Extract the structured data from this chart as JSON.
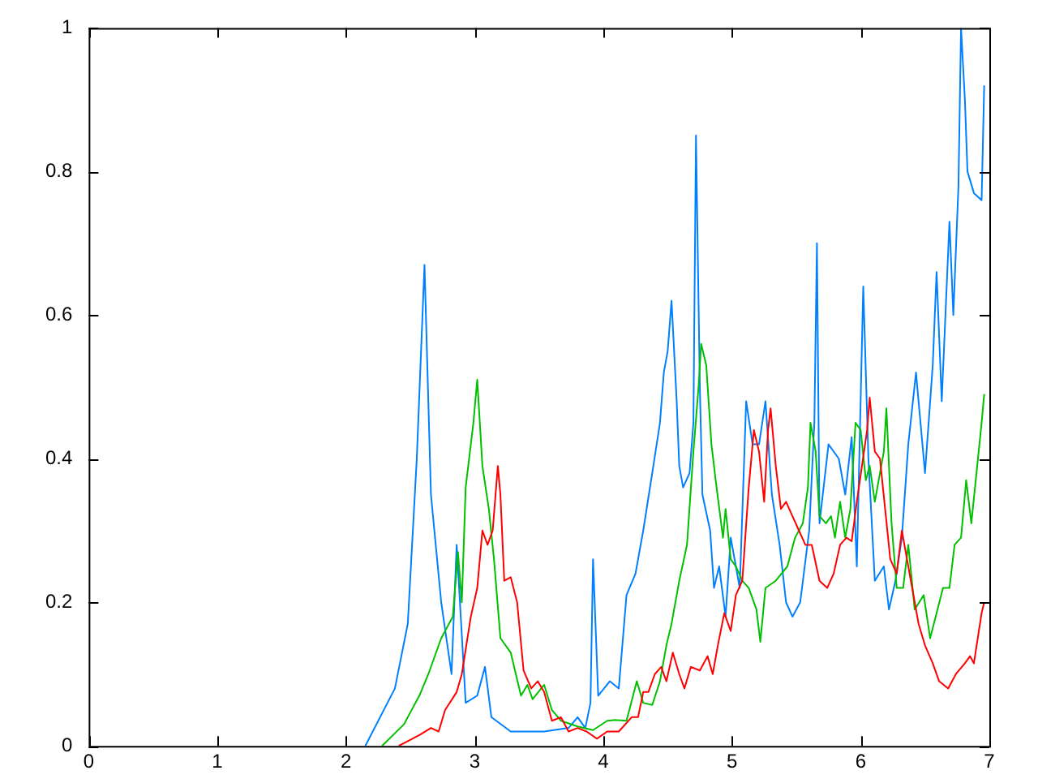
{
  "chart_data": {
    "type": "line",
    "xlim": [
      0,
      7
    ],
    "xticks": [
      0,
      1,
      2,
      3,
      4,
      5,
      6,
      7
    ],
    "ylim": [
      0,
      1
    ],
    "yticks": [
      0,
      0.2,
      0.4,
      0.6,
      0.8,
      1
    ],
    "grid": false,
    "legend": false,
    "marker": "none",
    "line_style": "solid",
    "series": [
      {
        "color": "#ff0000",
        "x": [
          2.41,
          2.57,
          2.66,
          2.72,
          2.77,
          2.86,
          2.9,
          2.97,
          3.02,
          3.06,
          3.1,
          3.14,
          3.18,
          3.2,
          3.23,
          3.28,
          3.33,
          3.38,
          3.44,
          3.49,
          3.54,
          3.6,
          3.67,
          3.73,
          3.8,
          3.87,
          3.95,
          4.03,
          4.12,
          4.22,
          4.27,
          4.31,
          4.35,
          4.4,
          4.45,
          4.49,
          4.54,
          4.59,
          4.63,
          4.68,
          4.75,
          4.81,
          4.85,
          4.89,
          4.94,
          4.99,
          5.03,
          5.08,
          5.13,
          5.17,
          5.21,
          5.25,
          5.28,
          5.3,
          5.34,
          5.38,
          5.42,
          5.47,
          5.52,
          5.57,
          5.62,
          5.68,
          5.74,
          5.79,
          5.84,
          5.89,
          5.93,
          5.97,
          6.01,
          6.05,
          6.07,
          6.11,
          6.15,
          6.19,
          6.23,
          6.28,
          6.32,
          6.36,
          6.4,
          6.45,
          6.5,
          6.56,
          6.61,
          6.68,
          6.74,
          6.81,
          6.85,
          6.88,
          6.94,
          6.96
        ],
        "values": [
          0,
          0.015,
          0.025,
          0.02,
          0.05,
          0.075,
          0.1,
          0.18,
          0.22,
          0.3,
          0.28,
          0.3,
          0.39,
          0.35,
          0.23,
          0.235,
          0.2,
          0.105,
          0.08,
          0.09,
          0.075,
          0.035,
          0.04,
          0.02,
          0.025,
          0.02,
          0.01,
          0.02,
          0.02,
          0.04,
          0.04,
          0.075,
          0.075,
          0.1,
          0.11,
          0.09,
          0.13,
          0.1,
          0.08,
          0.11,
          0.105,
          0.125,
          0.1,
          0.14,
          0.185,
          0.16,
          0.21,
          0.23,
          0.36,
          0.44,
          0.41,
          0.34,
          0.44,
          0.47,
          0.39,
          0.33,
          0.34,
          0.32,
          0.3,
          0.28,
          0.28,
          0.23,
          0.22,
          0.24,
          0.28,
          0.29,
          0.285,
          0.34,
          0.39,
          0.44,
          0.485,
          0.41,
          0.4,
          0.33,
          0.26,
          0.24,
          0.3,
          0.26,
          0.22,
          0.17,
          0.14,
          0.115,
          0.09,
          0.08,
          0.1,
          0.115,
          0.125,
          0.115,
          0.185,
          0.2
        ]
      },
      {
        "color": "#00c000",
        "x": [
          2.28,
          2.45,
          2.57,
          2.64,
          2.74,
          2.83,
          2.87,
          2.9,
          2.93,
          2.99,
          3.02,
          3.06,
          3.11,
          3.15,
          3.2,
          3.28,
          3.36,
          3.41,
          3.45,
          3.54,
          3.6,
          3.67,
          3.8,
          3.92,
          4.03,
          4.09,
          4.18,
          4.26,
          4.31,
          4.38,
          4.44,
          4.49,
          4.53,
          4.59,
          4.65,
          4.7,
          4.74,
          4.76,
          4.8,
          4.84,
          4.88,
          4.93,
          4.95,
          4.99,
          5.03,
          5.08,
          5.13,
          5.19,
          5.22,
          5.26,
          5.34,
          5.43,
          5.49,
          5.55,
          5.59,
          5.61,
          5.65,
          5.68,
          5.73,
          5.77,
          5.8,
          5.84,
          5.88,
          5.92,
          5.96,
          6,
          6.04,
          6.07,
          6.11,
          6.18,
          6.2,
          6.24,
          6.28,
          6.33,
          6.37,
          6.42,
          6.49,
          6.54,
          6.59,
          6.64,
          6.69,
          6.73,
          6.78,
          6.82,
          6.86,
          6.9,
          6.94,
          6.96
        ],
        "values": [
          0,
          0.03,
          0.07,
          0.1,
          0.15,
          0.18,
          0.27,
          0.2,
          0.36,
          0.45,
          0.51,
          0.39,
          0.33,
          0.26,
          0.15,
          0.13,
          0.07,
          0.085,
          0.065,
          0.085,
          0.05,
          0.035,
          0.027,
          0.022,
          0.035,
          0.036,
          0.035,
          0.09,
          0.06,
          0.057,
          0.09,
          0.14,
          0.17,
          0.23,
          0.28,
          0.41,
          0.5,
          0.56,
          0.53,
          0.42,
          0.36,
          0.29,
          0.33,
          0.26,
          0.25,
          0.23,
          0.22,
          0.19,
          0.145,
          0.22,
          0.23,
          0.25,
          0.29,
          0.31,
          0.36,
          0.45,
          0.41,
          0.32,
          0.31,
          0.32,
          0.29,
          0.34,
          0.29,
          0.33,
          0.45,
          0.44,
          0.37,
          0.39,
          0.34,
          0.41,
          0.47,
          0.31,
          0.22,
          0.22,
          0.28,
          0.19,
          0.21,
          0.15,
          0.185,
          0.22,
          0.22,
          0.28,
          0.29,
          0.37,
          0.31,
          0.38,
          0.45,
          0.49
        ]
      },
      {
        "color": "#0080ff",
        "x": [
          2.15,
          2.38,
          2.48,
          2.55,
          2.61,
          2.66,
          2.74,
          2.82,
          2.86,
          2.93,
          3.02,
          3.08,
          3.13,
          3.28,
          3.54,
          3.73,
          3.8,
          3.86,
          3.9,
          3.92,
          3.96,
          4.05,
          4.12,
          4.18,
          4.25,
          4.31,
          4.38,
          4.44,
          4.47,
          4.5,
          4.53,
          4.57,
          4.59,
          4.62,
          4.67,
          4.7,
          4.72,
          4.75,
          4.77,
          4.83,
          4.86,
          4.9,
          4.95,
          4.99,
          5.06,
          5.11,
          5.16,
          5.21,
          5.26,
          5.31,
          5.37,
          5.42,
          5.47,
          5.53,
          5.6,
          5.64,
          5.66,
          5.68,
          5.75,
          5.83,
          5.88,
          5.93,
          5.97,
          6.02,
          6.06,
          6.11,
          6.18,
          6.22,
          6.27,
          6.32,
          6.37,
          6.43,
          6.5,
          6.56,
          6.59,
          6.63,
          6.69,
          6.72,
          6.76,
          6.78,
          6.81,
          6.83,
          6.88,
          6.94,
          6.96
        ],
        "values": [
          0,
          0.08,
          0.17,
          0.4,
          0.67,
          0.35,
          0.2,
          0.1,
          0.28,
          0.06,
          0.07,
          0.11,
          0.04,
          0.02,
          0.02,
          0.025,
          0.04,
          0.025,
          0.06,
          0.26,
          0.07,
          0.09,
          0.08,
          0.21,
          0.24,
          0.3,
          0.38,
          0.45,
          0.52,
          0.55,
          0.62,
          0.48,
          0.39,
          0.36,
          0.38,
          0.45,
          0.85,
          0.5,
          0.35,
          0.3,
          0.22,
          0.25,
          0.18,
          0.29,
          0.22,
          0.48,
          0.42,
          0.42,
          0.48,
          0.35,
          0.28,
          0.2,
          0.18,
          0.2,
          0.3,
          0.45,
          0.7,
          0.31,
          0.42,
          0.4,
          0.35,
          0.43,
          0.25,
          0.64,
          0.4,
          0.23,
          0.25,
          0.19,
          0.23,
          0.29,
          0.42,
          0.52,
          0.38,
          0.53,
          0.66,
          0.48,
          0.73,
          0.6,
          0.78,
          1,
          0.9,
          0.8,
          0.77,
          0.76,
          0.92
        ]
      }
    ]
  }
}
